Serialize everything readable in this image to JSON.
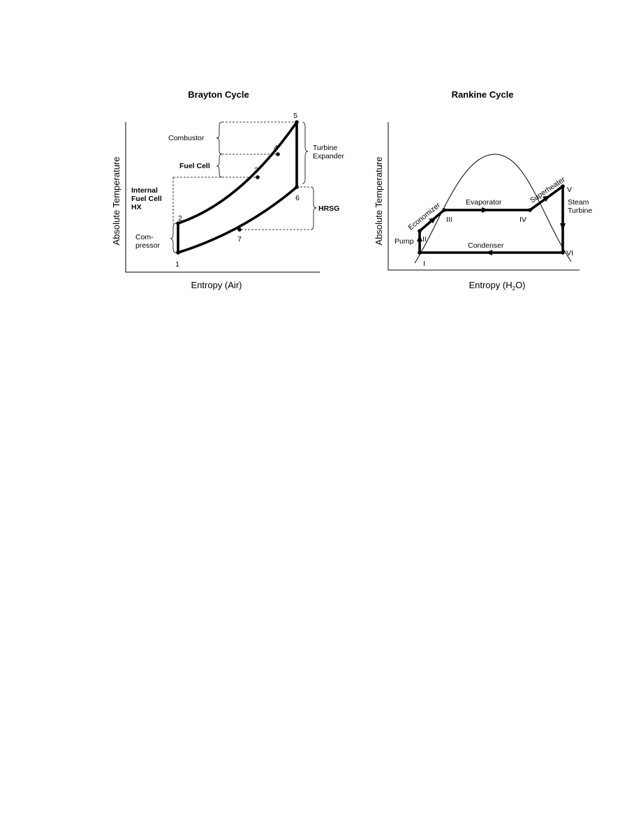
{
  "brayton": {
    "title": "Brayton Cycle",
    "ylabel": "Absolute Temperature",
    "xlabel": "Entropy (Air)",
    "points": {
      "p1": "1",
      "p2": "2",
      "p3": "3",
      "p4": "4",
      "p5": "5",
      "p6": "6",
      "p7": "7"
    },
    "labels": {
      "combustor": "Combustor",
      "fuel_cell": "Fuel Cell",
      "internal_hx_line1": "Internal",
      "internal_hx_line2": "Fuel Cell",
      "internal_hx_line3": "HX",
      "compressor_line1": "Com-",
      "compressor_line2": "pressor",
      "turbine_line1": "Turbine",
      "turbine_line2": "Expander",
      "hrsg": "HRSG"
    }
  },
  "rankine": {
    "title": "Rankine Cycle",
    "ylabel": "Absolute Temperature",
    "xlabel_part1": "Entropy (H",
    "xlabel_sub": "2",
    "xlabel_part2": "O)",
    "points": {
      "pI": "I",
      "pII": "II",
      "pIII": "III",
      "pIV": "IV",
      "pV": "V",
      "pVI": "VI"
    },
    "labels": {
      "pump": "Pump",
      "economizer": "Economizer",
      "evaporator": "Evaporator",
      "superheater": "Superheater",
      "steam_line1": "Steam",
      "steam_line2": "Turbine",
      "condenser": "Condenser"
    }
  }
}
